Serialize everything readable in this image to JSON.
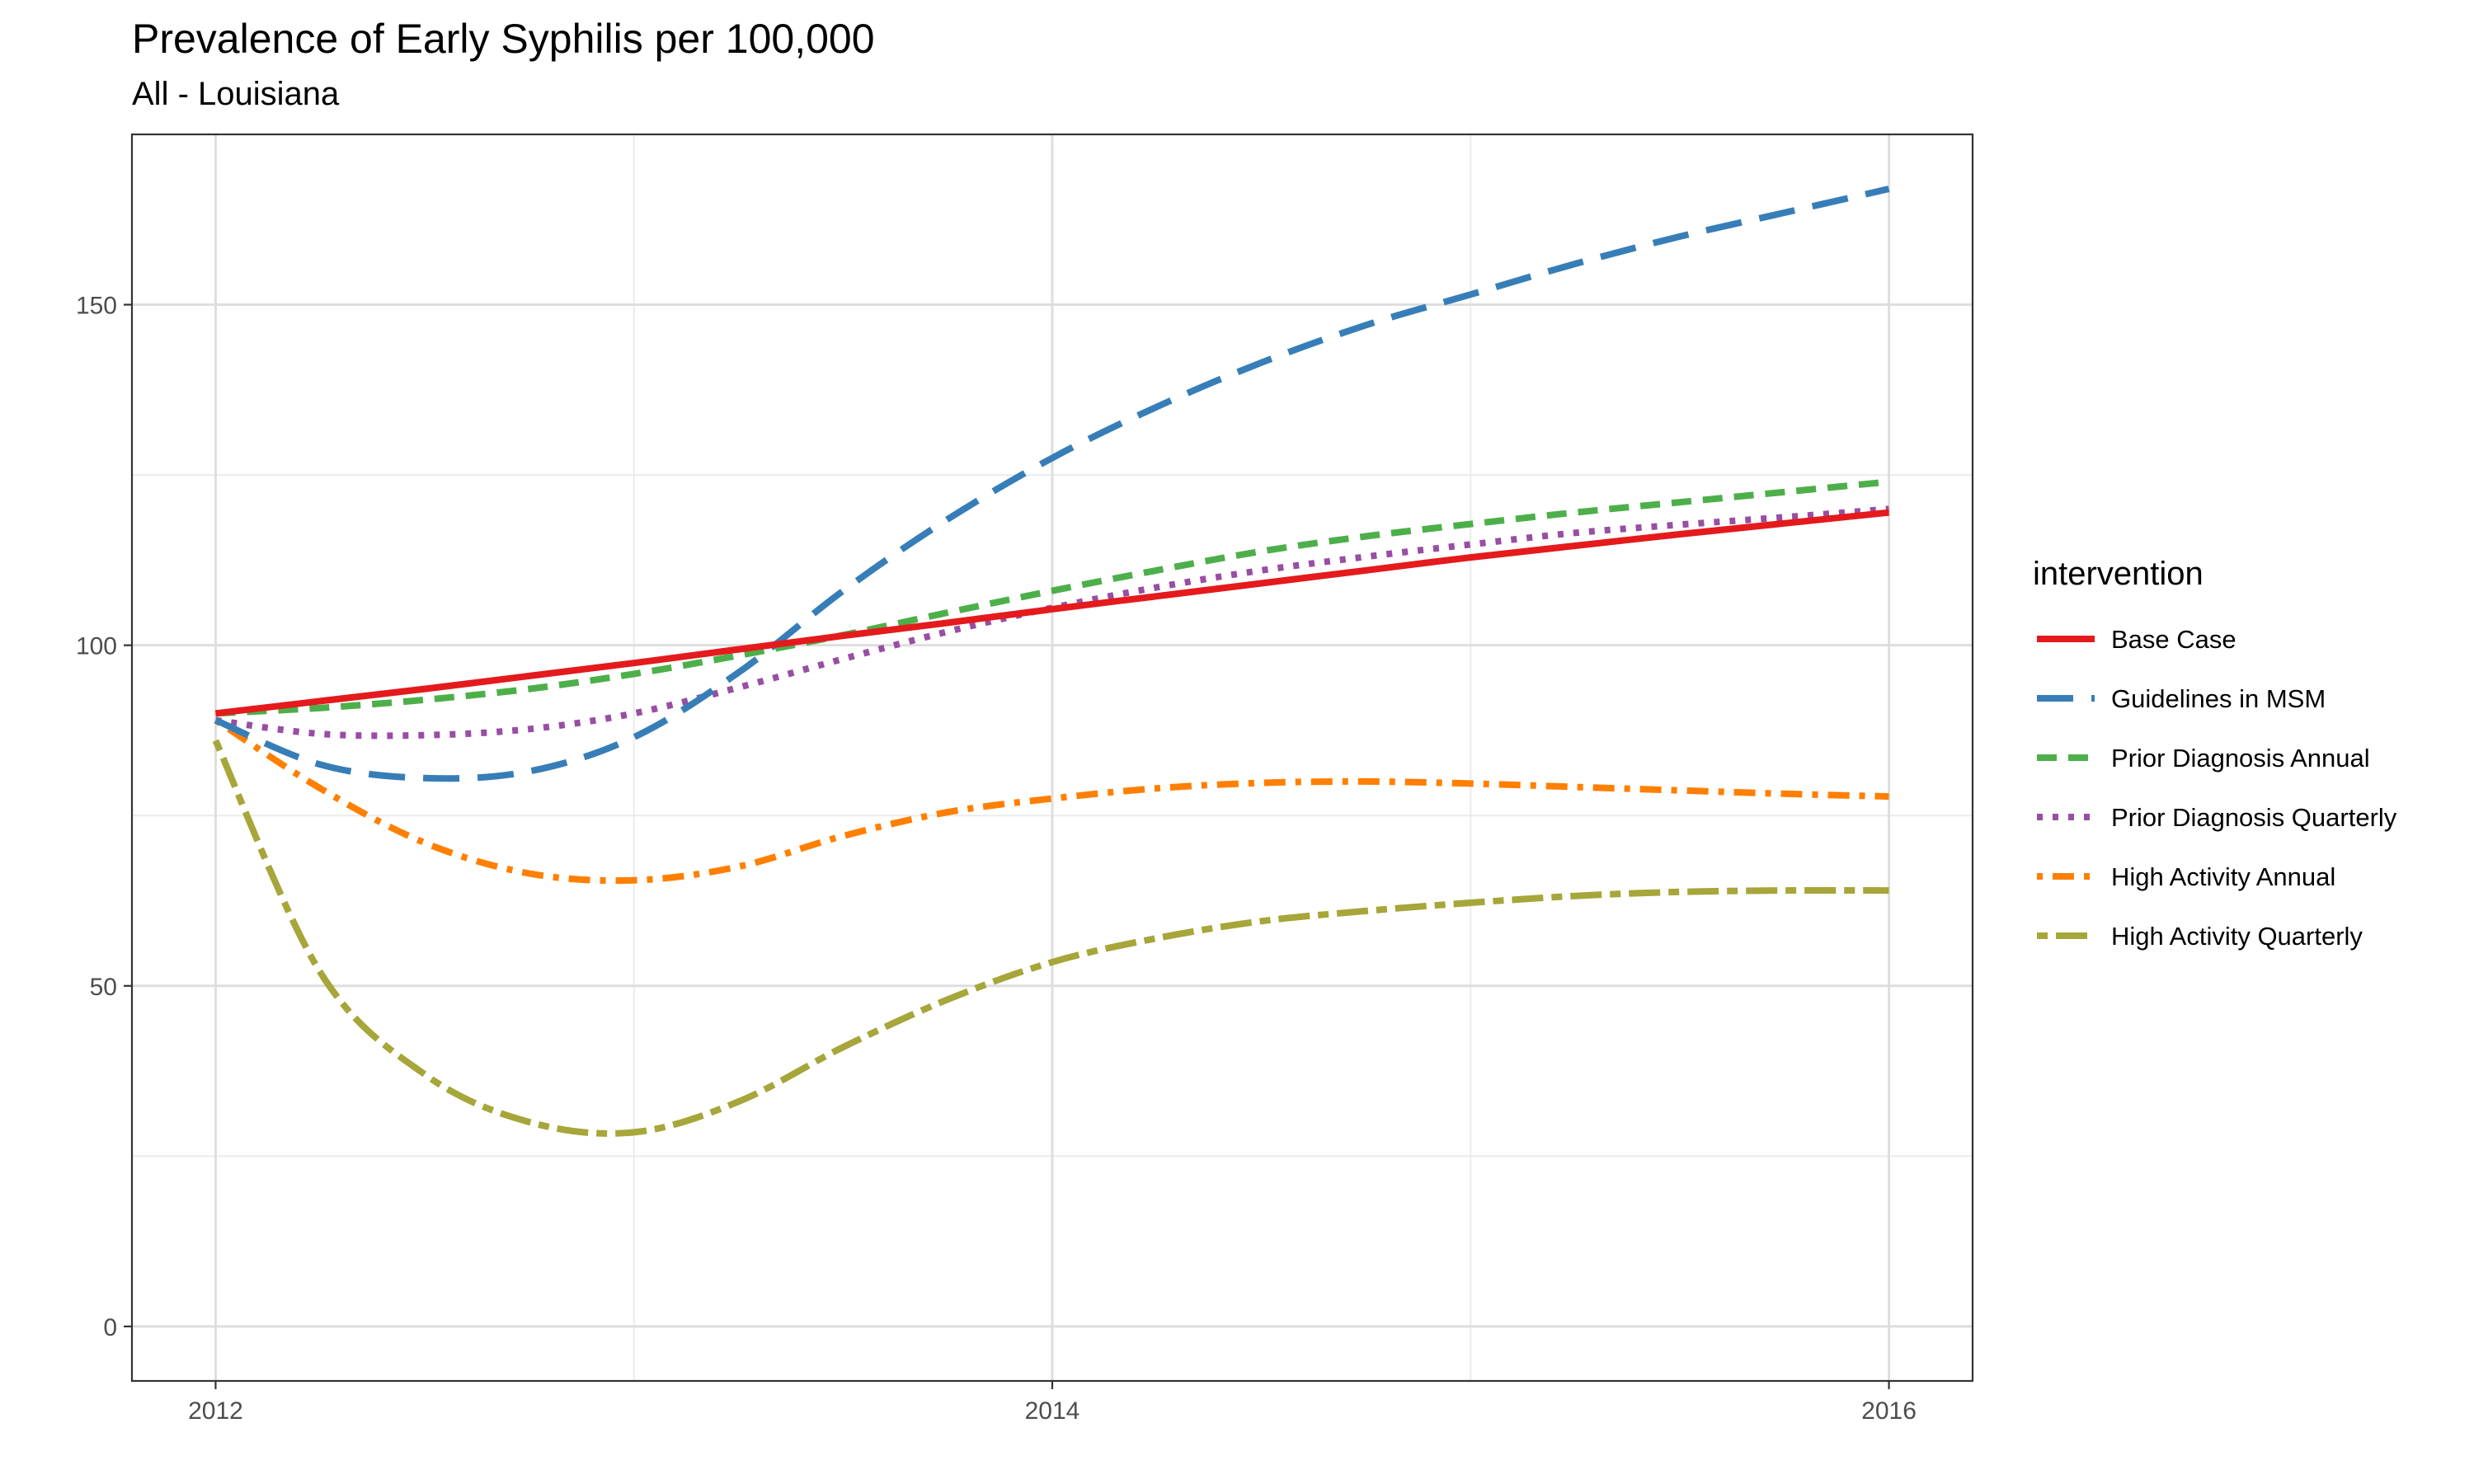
{
  "chart_data": {
    "type": "line",
    "title": "Prevalence of Early Syphilis per 100,000",
    "subtitle": "All - Louisiana",
    "xlabel": "",
    "ylabel": "",
    "xlim": [
      2011.8,
      2016.2
    ],
    "ylim": [
      -8,
      175
    ],
    "x_ticks": [
      2012,
      2014,
      2016
    ],
    "x_tick_labels": [
      "2012",
      "2014",
      "2016"
    ],
    "y_ticks": [
      0,
      50,
      100,
      150
    ],
    "y_tick_labels": [
      "0",
      "50",
      "100",
      "150"
    ],
    "grid": true,
    "legend_title": "intervention",
    "legend_position": "right",
    "x": [
      2012,
      2012.25,
      2012.5,
      2012.75,
      2013,
      2013.25,
      2013.5,
      2013.75,
      2014,
      2014.25,
      2014.5,
      2014.75,
      2015,
      2015.25,
      2015.5,
      2015.75,
      2016
    ],
    "series": [
      {
        "name": "Base Case",
        "color": "#e41a1c",
        "dash": "solid",
        "values": [
          90,
          91.8,
          93.6,
          95.5,
          97.4,
          99.4,
          101.4,
          103.3,
          105.3,
          107.2,
          109.1,
          111,
          112.9,
          114.6,
          116.3,
          117.9,
          119.5
        ]
      },
      {
        "name": "Guidelines in MSM",
        "color": "#377eb8",
        "dash": "longdash",
        "values": [
          89,
          82.5,
          80.5,
          81.5,
          86.5,
          96,
          108,
          118.5,
          127.5,
          135,
          141.5,
          147,
          151.5,
          156,
          160,
          163.5,
          167
        ]
      },
      {
        "name": "Prior Diagnosis Annual",
        "color": "#4daf4a",
        "dash": "dashed",
        "values": [
          90,
          90.8,
          92,
          93.6,
          95.8,
          98.5,
          101.5,
          104.8,
          108,
          111,
          113.8,
          116,
          117.8,
          119.5,
          121,
          122.5,
          124
        ]
      },
      {
        "name": "Prior Diagnosis Quarterly",
        "color": "#984ea3",
        "dash": "dotted",
        "values": [
          89,
          87,
          86.8,
          87.7,
          90,
          93.8,
          98,
          102,
          105.5,
          108.5,
          111,
          113,
          114.8,
          116.5,
          117.7,
          118.8,
          120
        ]
      },
      {
        "name": "High Activity Annual",
        "color": "#ff7f00",
        "dash": "dotdash",
        "values": [
          89,
          79,
          71,
          66.5,
          65.5,
          67.5,
          72,
          75.5,
          77.5,
          79,
          79.8,
          80,
          79.7,
          79.2,
          78.7,
          78.2,
          77.8
        ]
      },
      {
        "name": "High Activity Quarterly",
        "color": "#a6a63a",
        "dash": "twodash",
        "values": [
          86,
          52,
          37,
          30,
          28.5,
          33,
          41,
          48,
          53.5,
          57,
          59.5,
          61,
          62.2,
          63.2,
          63.8,
          64,
          64
        ]
      }
    ]
  }
}
